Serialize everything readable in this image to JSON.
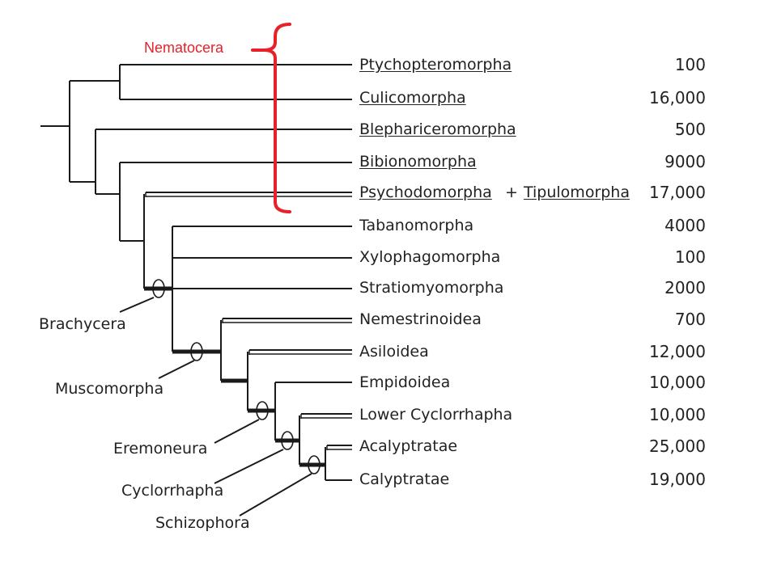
{
  "annotation": {
    "label": "Nematocera",
    "color": "#e8202a"
  },
  "taxa": [
    {
      "name": "Ptychopteromorpha",
      "count": "100",
      "underlined": true
    },
    {
      "name": "Culicomorpha",
      "count": "16,000",
      "underlined": true
    },
    {
      "name": "Blephariceromorpha",
      "count": "500",
      "underlined": true
    },
    {
      "name": "Bibionomorpha",
      "count": "9000",
      "underlined": true
    },
    {
      "name": "Psychodomorpha",
      "count": "17,000",
      "underlined": true
    },
    {
      "name": "Tabanomorpha",
      "count": "4000",
      "underlined": false
    },
    {
      "name": "Xylophagomorpha",
      "count": "100",
      "underlined": false
    },
    {
      "name": "Stratiomyomorpha",
      "count": "2000",
      "underlined": false
    },
    {
      "name": "Nemestrinoidea",
      "count": "700",
      "underlined": false
    },
    {
      "name": "Asiloidea",
      "count": "12,000",
      "underlined": false
    },
    {
      "name": "Empidoidea",
      "count": "10,000",
      "underlined": false
    },
    {
      "name": "Lower Cyclorrhapha",
      "count": "10,000",
      "underlined": false
    },
    {
      "name": "Acalyptratae",
      "count": "25,000",
      "underlined": false
    },
    {
      "name": "Calyptratae",
      "count": "19,000",
      "underlined": false
    }
  ],
  "extra_taxon": {
    "plus": "+",
    "name": "Tipulomorpha"
  },
  "clades": {
    "brachycera": "Brachycera",
    "muscomorpha": "Muscomorpha",
    "eremoneura": "Eremoneura",
    "cyclorrhapha": "Cyclorrhapha",
    "schizophora": "Schizophora"
  }
}
